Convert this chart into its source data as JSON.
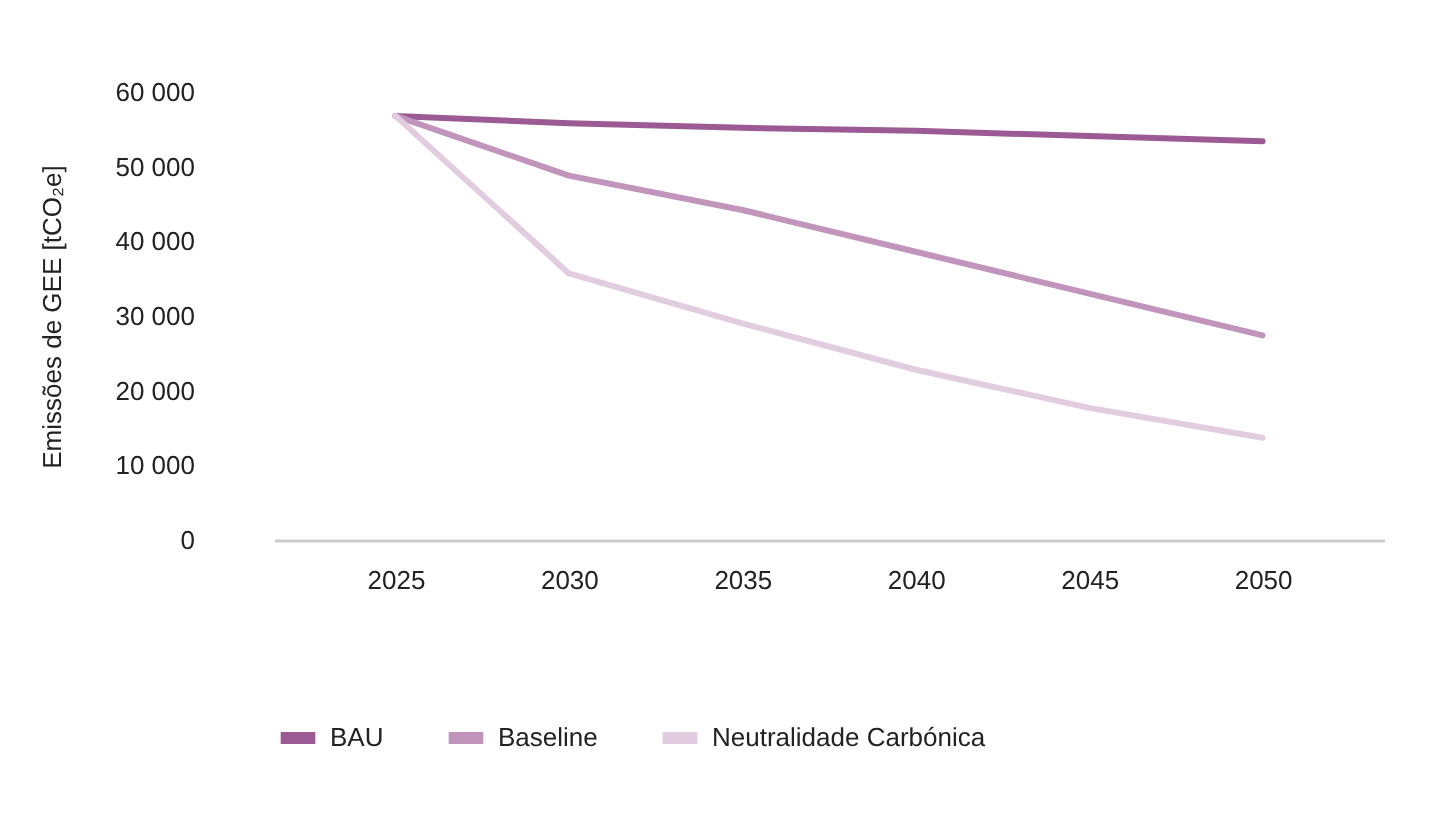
{
  "chart_data": {
    "type": "line",
    "ylabel": "Emissões de GEE [tCO₂e]",
    "categories": [
      "2025",
      "2030",
      "2035",
      "2040",
      "2045",
      "2050"
    ],
    "series": [
      {
        "name": "BAU",
        "color": "#9b5a93",
        "values": [
          56800,
          55800,
          55200,
          54800,
          54100,
          53400
        ]
      },
      {
        "name": "Baseline",
        "color": "#c194bc",
        "values": [
          56800,
          48800,
          44200,
          38600,
          33000,
          27400
        ]
      },
      {
        "name": "Neutralidade Carbónica",
        "color": "#e2cde0",
        "values": [
          56800,
          35700,
          29000,
          22800,
          17700,
          13700
        ]
      }
    ],
    "ylim": [
      0,
      60000
    ],
    "yticks": [
      {
        "value": 0,
        "label": "0"
      },
      {
        "value": 10000,
        "label": "10 000"
      },
      {
        "value": 20000,
        "label": "20 000"
      },
      {
        "value": 30000,
        "label": "30 000"
      },
      {
        "value": 40000,
        "label": "40 000"
      },
      {
        "value": 50000,
        "label": "50 000"
      },
      {
        "value": 60000,
        "label": "60 000"
      }
    ],
    "grid": false,
    "legend": "bottom",
    "marker": "none",
    "line_style": "solid"
  }
}
